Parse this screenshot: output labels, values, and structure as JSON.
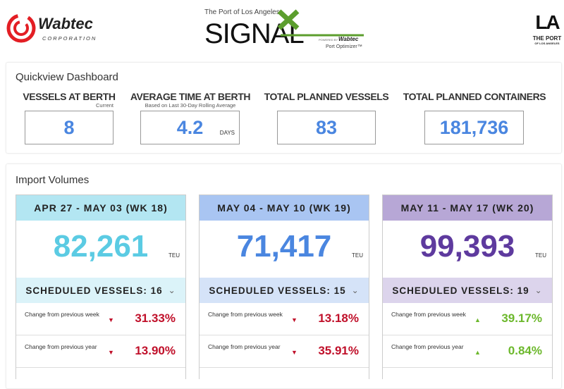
{
  "header": {
    "wabtec_logo": {
      "name": "Wabtec",
      "sub": "CORPORATION"
    },
    "signal_logo": {
      "top": "The Port of Los Angeles",
      "name": "SIGNAL",
      "powered": "POWERED BY",
      "brand": "Wabtec",
      "product": "Port Optimizer™"
    },
    "la_logo": {
      "mark": "LA",
      "name": "THE PORT",
      "sub": "OF LOS ANGELES"
    }
  },
  "quickview": {
    "title": "Quickview Dashboard",
    "stats": [
      {
        "label": "VESSELS AT BERTH",
        "sub": "Current",
        "value": "8",
        "unit": ""
      },
      {
        "label": "AVERAGE TIME AT BERTH",
        "sub": "Based on Last 30-Day Rolling Average",
        "value": "4.2",
        "unit": "DAYS"
      },
      {
        "label": "TOTAL PLANNED VESSELS",
        "sub": "",
        "value": "83",
        "unit": ""
      },
      {
        "label": "TOTAL PLANNED CONTAINERS",
        "sub": "",
        "value": "181,736",
        "unit": ""
      }
    ]
  },
  "imports": {
    "title": "Import Volumes",
    "cards": [
      {
        "week": "APR 27 - MAY 03 (WK 18)",
        "teu": "82,261",
        "unit": "TEU",
        "vessels": "SCHEDULED VESSELS: 16",
        "head_color": "#b3e6f2",
        "bar_color": "#dbf3f9",
        "num_color": "#5bcbe3",
        "changes": [
          {
            "label": "Change from previous week",
            "dir": "down",
            "value": "31.33%"
          },
          {
            "label": "Change from previous year",
            "dir": "down",
            "value": "13.90%"
          }
        ]
      },
      {
        "week": "MAY 04 - MAY 10 (WK 19)",
        "teu": "71,417",
        "unit": "TEU",
        "vessels": "SCHEDULED VESSELS: 15",
        "head_color": "#a9c5f2",
        "bar_color": "#d5e3f8",
        "num_color": "#4a86e0",
        "changes": [
          {
            "label": "Change from previous week",
            "dir": "down",
            "value": "13.18%"
          },
          {
            "label": "Change from previous year",
            "dir": "down",
            "value": "35.91%"
          }
        ]
      },
      {
        "week": "MAY 11 - MAY 17 (WK 20)",
        "teu": "99,393",
        "unit": "TEU",
        "vessels": "SCHEDULED VESSELS: 19",
        "head_color": "#b7a7d6",
        "bar_color": "#dcd4ec",
        "num_color": "#5e3a9e",
        "changes": [
          {
            "label": "Change from previous week",
            "dir": "up",
            "value": "39.17%"
          },
          {
            "label": "Change from previous year",
            "dir": "up",
            "value": "0.84%"
          }
        ]
      }
    ]
  },
  "colors": {
    "down": "#c0102a",
    "up": "#6cb82c"
  }
}
